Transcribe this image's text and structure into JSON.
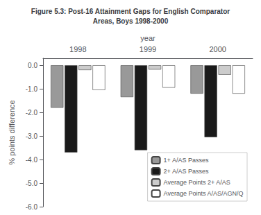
{
  "chart_data": {
    "type": "bar",
    "title": "Figure 5.3: Post-16 Attainment Gaps for English Comparator\nAreas, Boys 1998-2000",
    "xlabel": "year",
    "ylabel": "% points difference",
    "categories": [
      "1998",
      "1999",
      "2000"
    ],
    "series": [
      {
        "name": "1+ A/AS Passes",
        "color": "#999999",
        "values": [
          -1.8,
          -1.35,
          -1.2
        ]
      },
      {
        "name": "2+ A/AS Passes",
        "color": "#1a1a1a",
        "values": [
          -3.7,
          -3.6,
          -3.05
        ]
      },
      {
        "name": "Average Points 2+ A/AS",
        "color": "#cccccc",
        "values": [
          -0.2,
          -0.18,
          -0.4
        ]
      },
      {
        "name": "Average Points A/AS/AGN/Q",
        "color": "#ffffff",
        "values": [
          -1.05,
          -0.95,
          -1.2
        ]
      }
    ],
    "ylim": [
      -6.0,
      0.3
    ],
    "yticks": [
      {
        "value": 0,
        "label": "0.0"
      },
      {
        "value": -1,
        "label": "-1.0"
      },
      {
        "value": -2,
        "label": "-2.0"
      },
      {
        "value": -3,
        "label": "-3.0"
      },
      {
        "value": -4,
        "label": "-4.0"
      },
      {
        "value": -5,
        "label": "-5.0"
      },
      {
        "value": -6,
        "label": "-6.0"
      }
    ],
    "grid": false,
    "legend": "lower right"
  }
}
